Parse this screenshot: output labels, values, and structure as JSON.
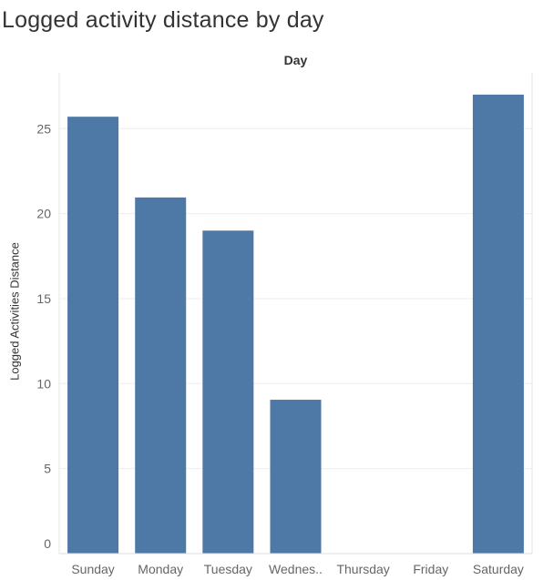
{
  "chart_data": {
    "type": "bar",
    "title": "Logged activity distance by day",
    "column_header": "Day",
    "ylabel": "Logged Activities Distance",
    "categories": [
      "Sunday",
      "Monday",
      "Tuesday",
      "Wednesday",
      "Thursday",
      "Friday",
      "Saturday"
    ],
    "category_labels": [
      "Sunday",
      "Monday",
      "Tuesday",
      "Wednes..",
      "Thursday",
      "Friday",
      "Saturday"
    ],
    "values": [
      25.7,
      20.95,
      19.0,
      9.05,
      0,
      0,
      27.0
    ],
    "ylim": [
      0,
      27.3
    ],
    "yticks": [
      0,
      5,
      10,
      15,
      20,
      25
    ],
    "bar_color": "#4e79a7",
    "grid": true
  }
}
